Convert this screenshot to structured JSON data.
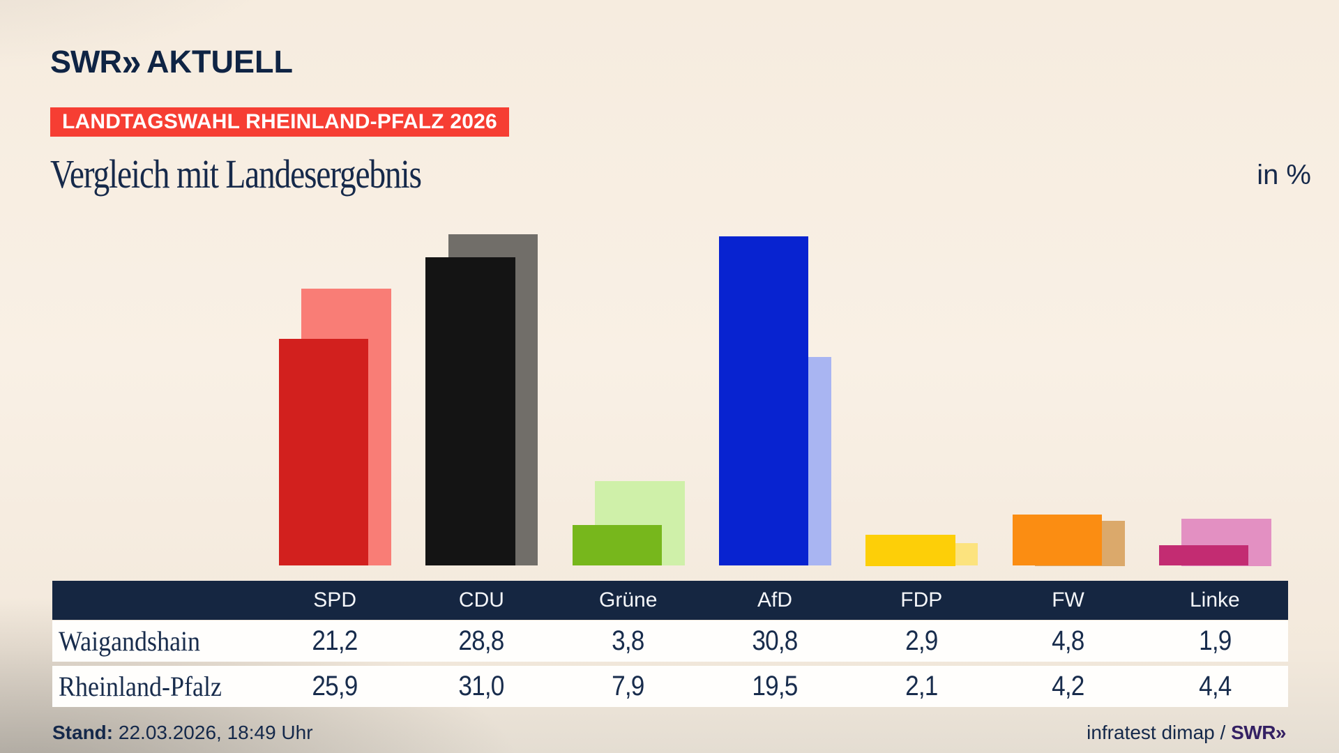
{
  "header": {
    "logo": {
      "swr": "SWR",
      "chevrons": "»",
      "aktuell": "AKTUELL"
    },
    "badge": "LANDTAGSWAHL RHEINLAND-PFALZ 2026",
    "title": "Vergleich mit Landesergebnis",
    "unit_label": "in %"
  },
  "chart_data": {
    "type": "bar",
    "title": "Vergleich mit Landesergebnis",
    "unit": "in %",
    "categories": [
      "SPD",
      "CDU",
      "Grüne",
      "AfD",
      "FDP",
      "FW",
      "Linke"
    ],
    "series": [
      {
        "name": "Waigandshain",
        "values": [
          21.2,
          28.8,
          3.8,
          30.8,
          2.9,
          4.8,
          1.9
        ]
      },
      {
        "name": "Rheinland-Pfalz",
        "values": [
          25.9,
          31.0,
          7.9,
          19.5,
          2.1,
          4.2,
          4.4
        ]
      }
    ],
    "colors": {
      "foreground": [
        "#d2201e",
        "#141414",
        "#77b71c",
        "#0823d0",
        "#fdcf08",
        "#fb8d12",
        "#c32c72"
      ],
      "background": [
        "#f97d76",
        "#716e69",
        "#cff0a9",
        "#a9b5f2",
        "#fce37e",
        "#dba96b",
        "#e390c2"
      ]
    },
    "ylim": [
      0,
      35
    ],
    "grid": false,
    "legend": "table-below",
    "value_format": "decimal-comma"
  },
  "table": {
    "columns": [
      "SPD",
      "CDU",
      "Grüne",
      "AfD",
      "FDP",
      "FW",
      "Linke"
    ],
    "rows": [
      {
        "label": "Waigandshain",
        "values": [
          "21,2",
          "28,8",
          "3,8",
          "30,8",
          "2,9",
          "4,8",
          "1,9"
        ]
      },
      {
        "label": "Rheinland-Pfalz",
        "values": [
          "25,9",
          "31,0",
          "7,9",
          "19,5",
          "2,1",
          "4,2",
          "4,4"
        ]
      }
    ]
  },
  "footer": {
    "stand_label": "Stand:",
    "stand_value": " 22.03.2026, 18:49 Uhr",
    "source_text": "infratest dimap / ",
    "source_logo": "SWR»"
  }
}
